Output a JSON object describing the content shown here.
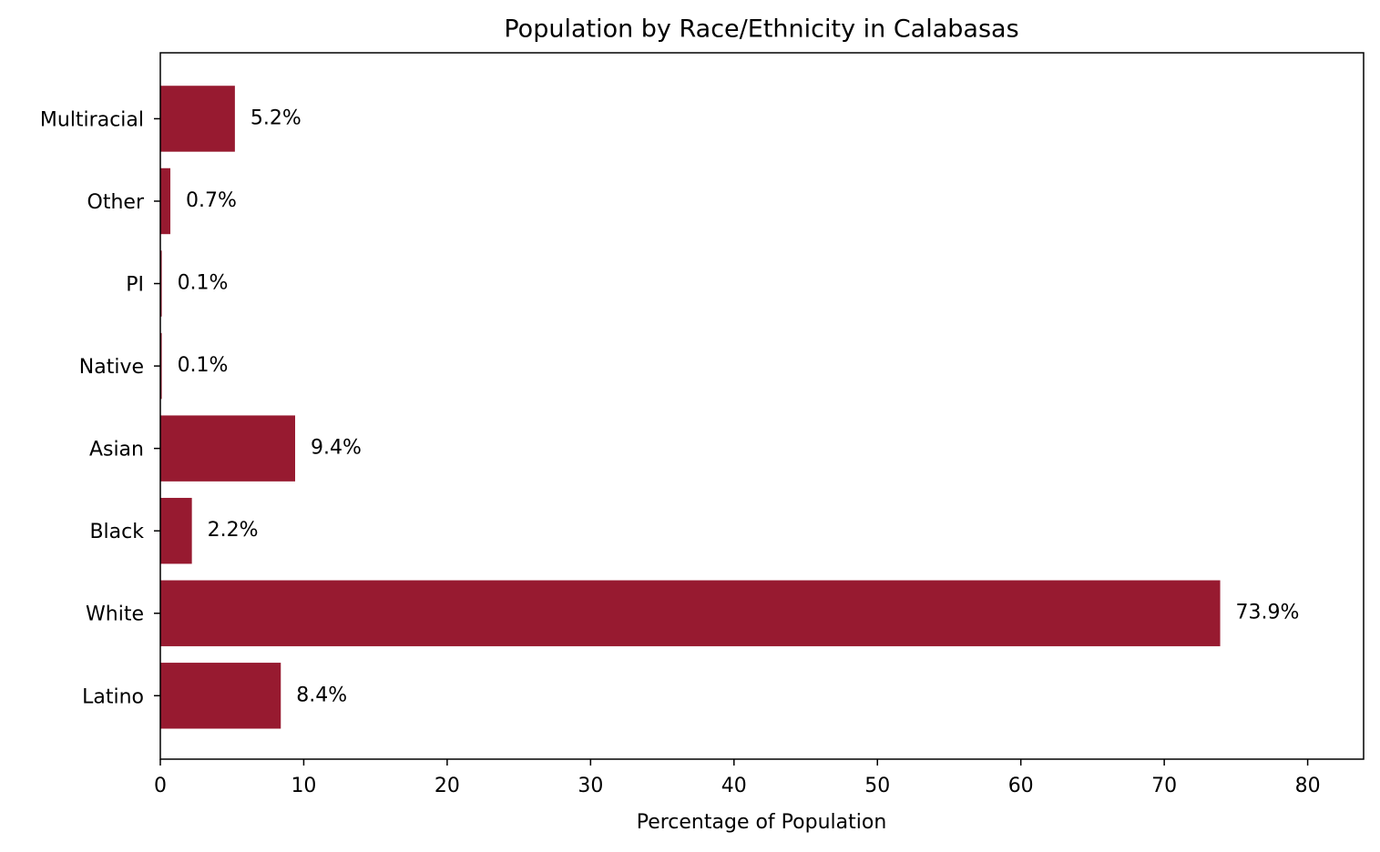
{
  "chart_data": {
    "type": "barh",
    "title": "Population by Race/Ethnicity in Calabasas",
    "xlabel": "Percentage of Population",
    "categories": [
      "Latino",
      "White",
      "Black",
      "Asian",
      "Native",
      "PI",
      "Other",
      "Multiracial"
    ],
    "values": [
      8.4,
      73.9,
      2.2,
      9.4,
      0.1,
      0.1,
      0.7,
      5.2
    ],
    "value_labels": [
      "8.4%",
      "73.9%",
      "2.2%",
      "9.4%",
      "0.1%",
      "0.1%",
      "0.7%",
      "5.2%"
    ],
    "color": "#971a30",
    "xlim": [
      0,
      83.9
    ],
    "xticks": [
      0,
      10,
      20,
      30,
      40,
      50,
      60,
      70,
      80
    ],
    "grid": false
  }
}
